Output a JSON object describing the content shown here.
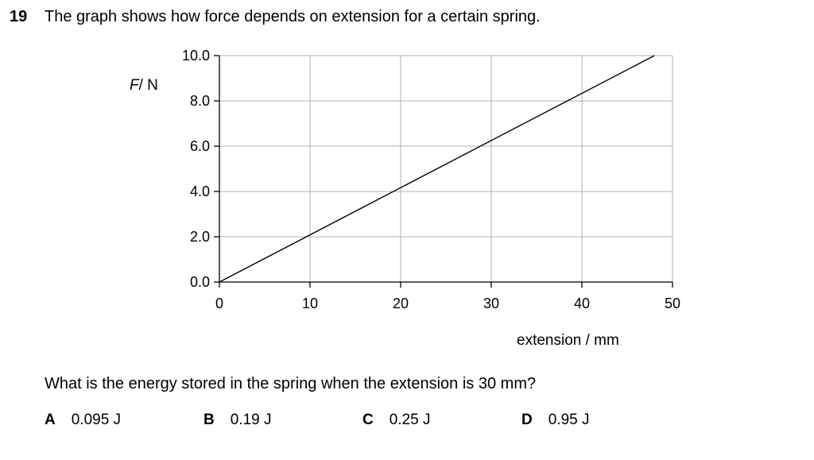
{
  "question": {
    "number": "19",
    "stem": "The graph shows how force depends on extension for a certain spring.",
    "prompt": "What is the energy stored in the spring when the extension is 30 mm?"
  },
  "options": [
    {
      "letter": "A",
      "text": "0.095 J"
    },
    {
      "letter": "B",
      "text": "0.19 J"
    },
    {
      "letter": "C",
      "text": "0.25 J"
    },
    {
      "letter": "D",
      "text": "0.95 J"
    }
  ],
  "chart_data": {
    "type": "line",
    "ylabel_symbol": "F",
    "ylabel_unit": "/ N",
    "xlabel": "extension / mm",
    "xlim": [
      0,
      50
    ],
    "ylim": [
      0,
      10
    ],
    "x_ticks": [
      "0",
      "10",
      "20",
      "30",
      "40",
      "50"
    ],
    "y_ticks": [
      "0.0",
      "2.0",
      "4.0",
      "6.0",
      "8.0",
      "10.0"
    ],
    "grid": true,
    "series": [
      {
        "x": [
          0,
          48
        ],
        "y": [
          0,
          10.0
        ]
      }
    ],
    "line_color": "#000000",
    "grid_color": "#b0b0b0"
  }
}
